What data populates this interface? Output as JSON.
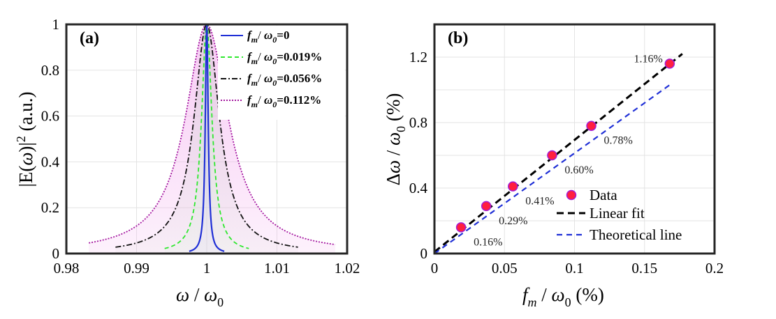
{
  "chart_data": [
    {
      "panel": "(a)",
      "type": "line",
      "xlabel": "ω / ω0",
      "ylabel": "|E(ω)|² (a.u.)",
      "xlim": [
        0.98,
        1.02
      ],
      "ylim": [
        0,
        1
      ],
      "xticks": [
        "0.98",
        "0.99",
        "1",
        "1.01",
        "1.02"
      ],
      "yticks": [
        "0",
        "0.2",
        "0.4",
        "0.6",
        "0.8",
        "1"
      ],
      "grid": true,
      "legend_position": "top-right",
      "series": [
        {
          "name": "f_m / ω_0=0",
          "legend_text": "=0",
          "fm_ratio_percent": 0,
          "color": "#1f2fd6",
          "dash": "solid",
          "half_width": 0.00025,
          "x_range": [
            0.9975,
            1.0025
          ]
        },
        {
          "name": "f_m / ω_0=0.019%",
          "legend_text": "=0.019%",
          "fm_ratio_percent": 0.019,
          "color": "#2ee82e",
          "dash": "dashed",
          "half_width": 0.0009,
          "x_range": [
            0.994,
            1.006
          ]
        },
        {
          "name": "f_m / ω_0=0.056%",
          "legend_text": "=0.056%",
          "fm_ratio_percent": 0.056,
          "color": "#111111",
          "dash": "dashdot",
          "half_width": 0.0022,
          "x_range": [
            0.987,
            1.013
          ]
        },
        {
          "name": "f_m / ω_0=0.112%",
          "legend_text": "=0.112%",
          "fm_ratio_percent": 0.112,
          "color": "#a3159f",
          "dash": "dotted",
          "half_width": 0.0037,
          "x_range": [
            0.9832,
            1.0183
          ]
        }
      ]
    },
    {
      "panel": "(b)",
      "type": "scatter",
      "xlabel": "f_m / ω_0 (%)",
      "ylabel": "Δω / ω_0 (%)",
      "xlim": [
        0,
        0.2
      ],
      "ylim": [
        0,
        1.4
      ],
      "xticks": [
        "0",
        "0.05",
        "0.1",
        "0.15",
        "0.2"
      ],
      "yticks": [
        "0",
        "0.4",
        "0.8",
        "1.2"
      ],
      "grid": true,
      "legend_position": "bottom-right",
      "points": [
        {
          "x": 0.019,
          "y": 0.16,
          "label": "0.16%"
        },
        {
          "x": 0.037,
          "y": 0.29,
          "label": "0.29%"
        },
        {
          "x": 0.056,
          "y": 0.41,
          "label": "0.41%"
        },
        {
          "x": 0.084,
          "y": 0.6,
          "label": "0.60%"
        },
        {
          "x": 0.112,
          "y": 0.78,
          "label": "0.78%"
        },
        {
          "x": 0.168,
          "y": 1.16,
          "label": "1.16%"
        }
      ],
      "lines": [
        {
          "name": "Linear fit",
          "x": [
            0,
            0.177
          ],
          "y": [
            0.01,
            1.22
          ],
          "color": "#000000",
          "dash": "dashed"
        },
        {
          "name": "Theoretical line",
          "x": [
            0,
            0.168
          ],
          "y": [
            0.0,
            1.03
          ],
          "color": "#1f2fd6",
          "dash": "dashed"
        }
      ],
      "legend": [
        "Data",
        "Linear fit",
        "Theoretical line"
      ],
      "marker": {
        "fill": "#ff1f3f",
        "edge": "#a31bd6"
      }
    }
  ]
}
